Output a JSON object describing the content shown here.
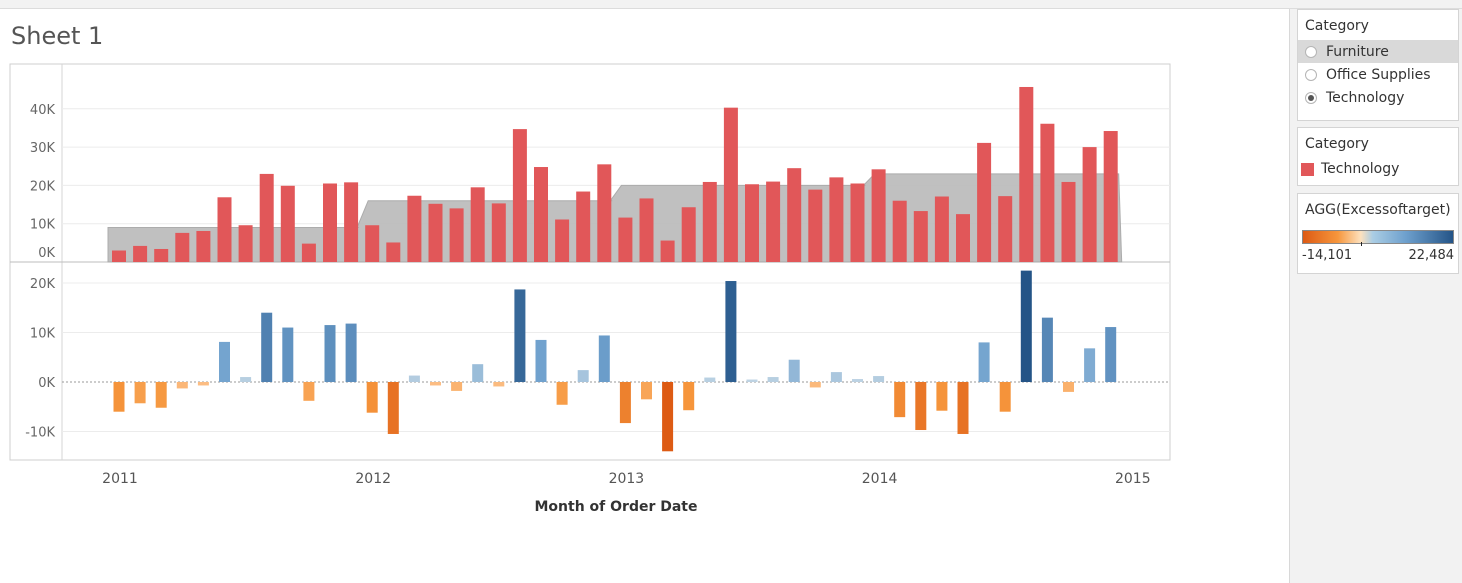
{
  "sheet": {
    "title": "Sheet 1"
  },
  "filter": {
    "title": "Category",
    "options": [
      "Furniture",
      "Office Supplies",
      "Technology"
    ],
    "selected": "Technology"
  },
  "color_legend": {
    "title": "Category",
    "item": "Technology",
    "color": "#e15759"
  },
  "diverging_legend": {
    "title": "AGG(Excessoftarget)",
    "min_label": "-14,101",
    "max_label": "22,484",
    "min": -14101,
    "max": 22484
  },
  "colors": {
    "sales_bar": "#e15759",
    "target_band": "#bdbdbd",
    "negative": "#f28e2b",
    "positive": "#4e79a7"
  },
  "chart_data": {
    "type": "bar",
    "xlabel": "Month of Order Date",
    "x_ticks": [
      "2011",
      "2012",
      "2013",
      "2014",
      "2015"
    ],
    "top": {
      "y_ticks": [
        "0K",
        "10K",
        "20K",
        "30K",
        "40K"
      ],
      "ylim": [
        0,
        47000
      ],
      "series": [
        {
          "name": "Technology",
          "values": [
            3000,
            4200,
            3400,
            7600,
            8100,
            16900,
            9600,
            23000,
            19900,
            4800,
            20500,
            20800,
            9600,
            5100,
            17300,
            15200,
            14000,
            19500,
            15300,
            34700,
            24800,
            11100,
            18400,
            25500,
            11600,
            16600,
            5600,
            14300,
            20900,
            40300,
            20300,
            21000,
            24500,
            18900,
            22100,
            20500,
            24200,
            16000,
            13300,
            17100,
            12500,
            31100,
            17200,
            45700,
            36100,
            20900,
            30000,
            34200
          ]
        },
        {
          "values": [
            9000,
            9000,
            9000,
            9000,
            9000,
            9000,
            9000,
            9000,
            9000,
            9000,
            9000,
            9000,
            16000,
            16000,
            16000,
            16000,
            16000,
            16000,
            16000,
            16000,
            16000,
            16000,
            16000,
            16000,
            20000,
            20000,
            20000,
            20000,
            20000,
            20000,
            20000,
            20000,
            20000,
            20000,
            20000,
            20000,
            23000,
            23000,
            23000,
            23000,
            23000,
            23000,
            23000,
            23000,
            23000,
            23000,
            23000,
            23000
          ]
        }
      ]
    },
    "bottom": {
      "y_ticks": [
        "-10K",
        "0K",
        "10K",
        "20K"
      ],
      "ylim": [
        -16000,
        23500
      ],
      "series": [
        {
          "name": "AGG(Excessoftarget)",
          "values": [
            -6000,
            -4300,
            -5200,
            -1300,
            -700,
            8100,
            1000,
            14000,
            11000,
            -3800,
            11500,
            11800,
            -6200,
            -10500,
            1300,
            -700,
            -1800,
            3600,
            -900,
            18700,
            8500,
            -4600,
            2400,
            9400,
            -8300,
            -3500,
            -14000,
            -5700,
            900,
            20400,
            500,
            1000,
            4500,
            -1100,
            2000,
            600,
            1200,
            -7100,
            -9700,
            -5800,
            -10500,
            8000,
            -6000,
            22500,
            13000,
            -2000,
            6800,
            11100
          ]
        }
      ]
    }
  }
}
